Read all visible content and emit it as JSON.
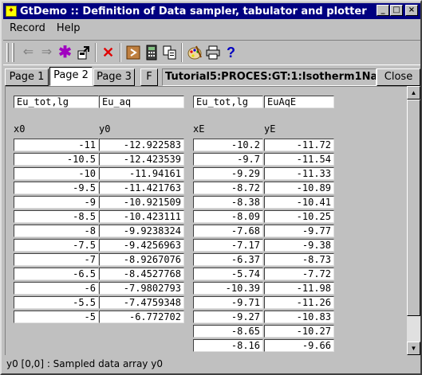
{
  "window": {
    "title": "GtDemo :: Definition of Data sampler, tabulator and plotter",
    "minimize": "_",
    "maximize": "□",
    "close": "×"
  },
  "menu": {
    "record": "Record",
    "help": "Help"
  },
  "toolbar": {
    "icons": [
      "back-arrow-icon",
      "forward-arrow-icon",
      "asterisk-icon",
      "export-icon",
      "delete-x-icon",
      "run-icon",
      "calculator-icon",
      "copy-icon",
      "palette-icon",
      "print-icon",
      "help-icon"
    ]
  },
  "tabs": {
    "page1": "Page 1",
    "page2": "Page 2",
    "page3": "Page 3",
    "f": "F",
    "active": "page2"
  },
  "path": "Tutorial5:PROCES:GT:1:Isotherm1Na:",
  "close_button": "Close",
  "table": {
    "set1": {
      "x_name": "Eu_tot,lg",
      "y_name": "Eu_aq",
      "x_header": "x0",
      "y_header": "y0",
      "x": [
        "-11",
        "-10.5",
        "-10",
        "-9.5",
        "-9",
        "-8.5",
        "-8",
        "-7.5",
        "-7",
        "-6.5",
        "-6",
        "-5.5",
        "-5"
      ],
      "y": [
        "-12.922583",
        "-12.423539",
        "-11.94161",
        "-11.421763",
        "-10.921509",
        "-10.423111",
        "-9.9238324",
        "-9.4256963",
        "-8.9267076",
        "-8.4527768",
        "-7.9802793",
        "-7.4759348",
        "-6.772702"
      ]
    },
    "set2": {
      "x_name": "Eu_tot,lg",
      "y_name": "EuAqE",
      "x_header": "xE",
      "y_header": "yE",
      "x": [
        "-10.2",
        "-9.7",
        "-9.29",
        "-8.72",
        "-8.38",
        "-8.09",
        "-7.68",
        "-7.17",
        "-6.37",
        "-5.74",
        "-10.39",
        "-9.71",
        "-9.27",
        "-8.65",
        "-8.16"
      ],
      "y": [
        "-11.72",
        "-11.54",
        "-11.33",
        "-10.89",
        "-10.41",
        "-10.25",
        "-9.77",
        "-9.38",
        "-8.73",
        "-7.72",
        "-11.98",
        "-11.26",
        "-10.83",
        "-10.27",
        "-9.66"
      ]
    }
  },
  "status": "y0 [0,0] : Sampled data array y0"
}
